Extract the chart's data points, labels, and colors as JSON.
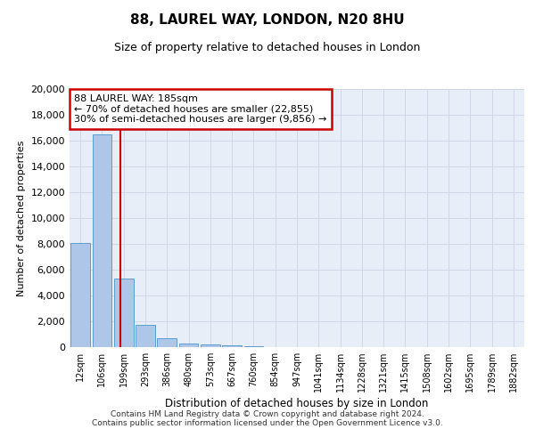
{
  "title": "88, LAUREL WAY, LONDON, N20 8HU",
  "subtitle": "Size of property relative to detached houses in London",
  "xlabel": "Distribution of detached houses by size in London",
  "ylabel": "Number of detached properties",
  "bin_labels": [
    "12sqm",
    "106sqm",
    "199sqm",
    "293sqm",
    "386sqm",
    "480sqm",
    "573sqm",
    "667sqm",
    "760sqm",
    "854sqm",
    "947sqm",
    "1041sqm",
    "1134sqm",
    "1228sqm",
    "1321sqm",
    "1415sqm",
    "1508sqm",
    "1602sqm",
    "1695sqm",
    "1789sqm",
    "1882sqm"
  ],
  "bar_values": [
    8100,
    16500,
    5300,
    1750,
    700,
    280,
    180,
    130,
    100,
    0,
    0,
    0,
    0,
    0,
    0,
    0,
    0,
    0,
    0,
    0,
    0
  ],
  "bar_color": "#aec6e8",
  "bar_edge_color": "#5a9ecf",
  "property_sqm": 185,
  "annotation_text": "88 LAUREL WAY: 185sqm\n← 70% of detached houses are smaller (22,855)\n30% of semi-detached houses are larger (9,856) →",
  "annotation_box_color": "#ffffff",
  "annotation_box_edge_color": "#cc0000",
  "vline_color": "#cc0000",
  "grid_color": "#d0d8e8",
  "background_color": "#e8eef8",
  "ylim": [
    0,
    20000
  ],
  "yticks": [
    0,
    2000,
    4000,
    6000,
    8000,
    10000,
    12000,
    14000,
    16000,
    18000,
    20000
  ],
  "footer_line1": "Contains HM Land Registry data © Crown copyright and database right 2024.",
  "footer_line2": "Contains public sector information licensed under the Open Government Licence v3.0."
}
